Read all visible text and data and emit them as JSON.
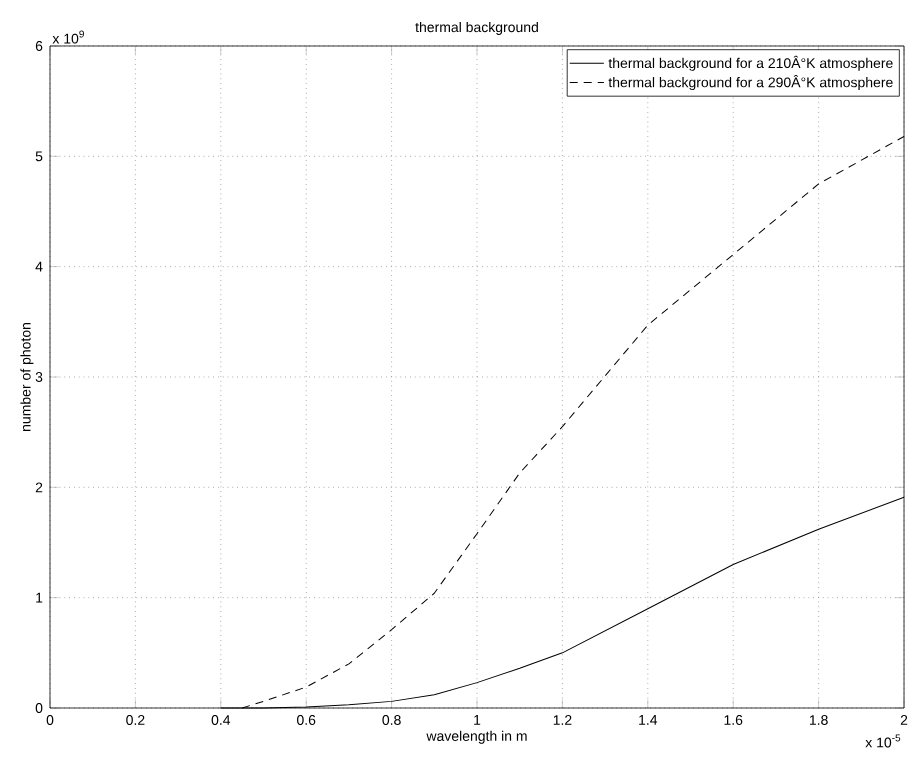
{
  "chart_data": {
    "type": "line",
    "title": "thermal background",
    "xlabel": "wavelength in m",
    "ylabel": "number of photon",
    "annotations": [
      "x 10$^{9}$",
      "x 10$^{-5}$"
    ],
    "xlim": [
      0,
      2
    ],
    "ylim": [
      0,
      6
    ],
    "xticks": [
      0,
      0.2,
      0.4,
      0.6,
      0.8,
      1,
      1.2,
      1.4,
      1.6,
      1.8,
      2
    ],
    "yticks": [
      0,
      1,
      2,
      3,
      4,
      5,
      6
    ],
    "grid": true,
    "legend": "top right",
    "series": [
      {
        "name": "thermal background for a 210Â°K atmosphere",
        "color": "#000000",
        "line_style": "solid",
        "x": [
          0.4,
          0.5,
          0.6,
          0.7,
          0.8,
          0.9,
          1.0,
          1.1,
          1.2,
          1.4,
          1.6,
          1.8,
          2.0
        ],
        "values": [
          0,
          0,
          0.01,
          0.03,
          0.06,
          0.12,
          0.23,
          0.36,
          0.5,
          0.9,
          1.3,
          1.62,
          1.91
        ]
      },
      {
        "name": "thermal background for a 290Â°K atmosphere",
        "color": "#000000",
        "line_style": "dashed",
        "x": [
          0.45,
          0.5,
          0.6,
          0.7,
          0.8,
          0.9,
          1.0,
          1.1,
          1.2,
          1.4,
          1.6,
          1.8,
          2.0
        ],
        "values": [
          0,
          0.06,
          0.19,
          0.4,
          0.71,
          1.04,
          1.58,
          2.13,
          2.55,
          3.47,
          4.11,
          4.75,
          5.18
        ]
      }
    ]
  }
}
